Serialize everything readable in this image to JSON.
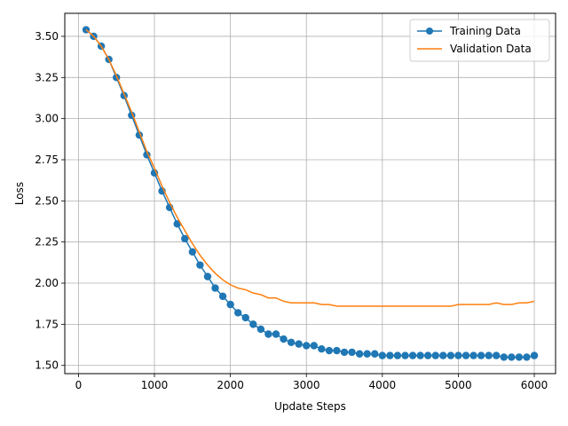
{
  "chart_data": {
    "type": "line",
    "title": "",
    "xlabel": "Update Steps",
    "ylabel": "Loss",
    "xlim": [
      -180,
      6280
    ],
    "ylim": [
      1.45,
      3.64
    ],
    "xticks": [
      0,
      1000,
      2000,
      3000,
      4000,
      5000,
      6000
    ],
    "xtick_labels": [
      "0",
      "1000",
      "2000",
      "3000",
      "4000",
      "5000",
      "6000"
    ],
    "yticks": [
      1.5,
      1.75,
      2.0,
      2.25,
      2.5,
      2.75,
      3.0,
      3.25,
      3.5
    ],
    "ytick_labels": [
      "1.50",
      "1.75",
      "2.00",
      "2.25",
      "2.50",
      "2.75",
      "3.00",
      "3.25",
      "3.50"
    ],
    "grid": true,
    "legend_position": "top-right",
    "series": [
      {
        "name": "Training Data",
        "color": "#1f77b4",
        "marker": "circle",
        "x": [
          100,
          200,
          300,
          400,
          500,
          600,
          700,
          800,
          900,
          1000,
          1100,
          1200,
          1300,
          1400,
          1500,
          1600,
          1700,
          1800,
          1900,
          2000,
          2100,
          2200,
          2300,
          2400,
          2500,
          2600,
          2700,
          2800,
          2900,
          3000,
          3100,
          3200,
          3300,
          3400,
          3500,
          3600,
          3700,
          3800,
          3900,
          4000,
          4100,
          4200,
          4300,
          4400,
          4500,
          4600,
          4700,
          4800,
          4900,
          5000,
          5100,
          5200,
          5300,
          5400,
          5500,
          5600,
          5700,
          5800,
          5900,
          6000
        ],
        "y": [
          3.54,
          3.5,
          3.44,
          3.36,
          3.25,
          3.14,
          3.02,
          2.9,
          2.78,
          2.67,
          2.56,
          2.46,
          2.36,
          2.27,
          2.19,
          2.11,
          2.04,
          1.97,
          1.92,
          1.87,
          1.82,
          1.79,
          1.75,
          1.72,
          1.69,
          1.69,
          1.66,
          1.64,
          1.63,
          1.62,
          1.62,
          1.6,
          1.59,
          1.59,
          1.58,
          1.58,
          1.57,
          1.57,
          1.57,
          1.56,
          1.56,
          1.56,
          1.56,
          1.56,
          1.56,
          1.56,
          1.56,
          1.56,
          1.56,
          1.56,
          1.56,
          1.56,
          1.56,
          1.56,
          1.56,
          1.55,
          1.55,
          1.55,
          1.55,
          1.56
        ]
      },
      {
        "name": "Validation Data",
        "color": "#ff7f0e",
        "marker": "none",
        "x": [
          100,
          200,
          300,
          400,
          500,
          600,
          700,
          800,
          900,
          1000,
          1100,
          1200,
          1300,
          1400,
          1500,
          1600,
          1700,
          1800,
          1900,
          2000,
          2100,
          2200,
          2300,
          2400,
          2500,
          2600,
          2700,
          2800,
          2900,
          3000,
          3100,
          3200,
          3300,
          3400,
          3500,
          3600,
          3700,
          3800,
          3900,
          4000,
          4100,
          4200,
          4300,
          4400,
          4500,
          4600,
          4700,
          4800,
          4900,
          5000,
          5100,
          5200,
          5300,
          5400,
          5500,
          5600,
          5700,
          5800,
          5900,
          6000
        ],
        "y": [
          3.54,
          3.5,
          3.44,
          3.36,
          3.26,
          3.15,
          3.04,
          2.92,
          2.8,
          2.7,
          2.59,
          2.49,
          2.4,
          2.32,
          2.24,
          2.17,
          2.11,
          2.06,
          2.02,
          1.99,
          1.97,
          1.96,
          1.94,
          1.93,
          1.91,
          1.91,
          1.89,
          1.88,
          1.88,
          1.88,
          1.88,
          1.87,
          1.87,
          1.86,
          1.86,
          1.86,
          1.86,
          1.86,
          1.86,
          1.86,
          1.86,
          1.86,
          1.86,
          1.86,
          1.86,
          1.86,
          1.86,
          1.86,
          1.86,
          1.87,
          1.87,
          1.87,
          1.87,
          1.87,
          1.88,
          1.87,
          1.87,
          1.88,
          1.88,
          1.89
        ]
      }
    ]
  }
}
